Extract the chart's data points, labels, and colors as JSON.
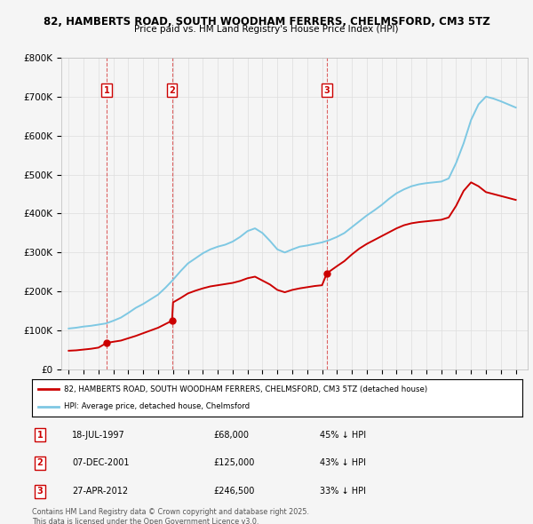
{
  "title1": "82, HAMBERTS ROAD, SOUTH WOODHAM FERRERS, CHELMSFORD, CM3 5TZ",
  "title2": "Price paid vs. HM Land Registry's House Price Index (HPI)",
  "legend_line1": "82, HAMBERTS ROAD, SOUTH WOODHAM FERRERS, CHELMSFORD, CM3 5TZ (detached house)",
  "legend_line2": "HPI: Average price, detached house, Chelmsford",
  "footer": "Contains HM Land Registry data © Crown copyright and database right 2025.\nThis data is licensed under the Open Government Licence v3.0.",
  "purchases": [
    {
      "label": "1",
      "date": "18-JUL-1997",
      "year": 1997.54,
      "price": 68000,
      "text": "45% ↓ HPI"
    },
    {
      "label": "2",
      "date": "07-DEC-2001",
      "year": 2001.93,
      "price": 125000,
      "text": "43% ↓ HPI"
    },
    {
      "label": "3",
      "date": "27-APR-2012",
      "year": 2012.32,
      "price": 246500,
      "text": "33% ↓ HPI"
    }
  ],
  "hpi_color": "#7ec8e3",
  "price_color": "#cc0000",
  "background_color": "#f5f5f5",
  "grid_color": "#dddddd",
  "ylim": [
    0,
    800000
  ],
  "xlim": [
    1994.5,
    2025.8
  ],
  "hpi_years": [
    1995,
    1995.5,
    1996,
    1996.5,
    1997,
    1997.5,
    1998,
    1998.5,
    1999,
    1999.5,
    2000,
    2000.5,
    2001,
    2001.5,
    2002,
    2002.5,
    2003,
    2003.5,
    2004,
    2004.5,
    2005,
    2005.5,
    2006,
    2006.5,
    2007,
    2007.5,
    2008,
    2008.5,
    2009,
    2009.5,
    2010,
    2010.5,
    2011,
    2011.5,
    2012,
    2012.5,
    2013,
    2013.5,
    2014,
    2014.5,
    2015,
    2015.5,
    2016,
    2016.5,
    2017,
    2017.5,
    2018,
    2018.5,
    2019,
    2019.5,
    2020,
    2020.5,
    2021,
    2021.5,
    2022,
    2022.5,
    2023,
    2023.5,
    2024,
    2024.5,
    2025
  ],
  "hpi_values": [
    105000,
    107000,
    110000,
    112000,
    115000,
    118000,
    125000,
    133000,
    145000,
    158000,
    168000,
    180000,
    192000,
    210000,
    230000,
    252000,
    272000,
    285000,
    298000,
    308000,
    315000,
    320000,
    328000,
    340000,
    355000,
    362000,
    350000,
    330000,
    308000,
    300000,
    308000,
    315000,
    318000,
    322000,
    326000,
    332000,
    340000,
    350000,
    365000,
    380000,
    395000,
    408000,
    422000,
    438000,
    452000,
    462000,
    470000,
    475000,
    478000,
    480000,
    482000,
    490000,
    530000,
    580000,
    640000,
    680000,
    700000,
    695000,
    688000,
    680000,
    672000
  ],
  "price_years": [
    1995,
    1995.5,
    1996,
    1996.5,
    1997,
    1997.54,
    1998,
    1998.5,
    1999,
    1999.5,
    2000,
    2000.5,
    2001,
    2001.93,
    2002,
    2002.5,
    2003,
    2003.5,
    2004,
    2004.5,
    2005,
    2005.5,
    2006,
    2006.5,
    2007,
    2007.5,
    2008,
    2008.5,
    2009,
    2009.5,
    2010,
    2010.5,
    2011,
    2011.5,
    2012,
    2012.32,
    2013,
    2013.5,
    2014,
    2014.5,
    2015,
    2015.5,
    2016,
    2016.5,
    2017,
    2017.5,
    2018,
    2018.5,
    2019,
    2019.5,
    2020,
    2020.5,
    2021,
    2021.5,
    2022,
    2022.5,
    2023,
    2023.5,
    2024,
    2024.5,
    2025
  ],
  "price_values": [
    48000,
    49000,
    51000,
    53000,
    56000,
    68000,
    71000,
    74000,
    80000,
    86000,
    93000,
    100000,
    107000,
    125000,
    172000,
    183000,
    195000,
    202000,
    208000,
    213000,
    216000,
    219000,
    222000,
    227000,
    234000,
    238000,
    228000,
    218000,
    204000,
    198000,
    204000,
    208000,
    211000,
    214000,
    216000,
    246500,
    265000,
    278000,
    295000,
    310000,
    322000,
    332000,
    342000,
    352000,
    362000,
    370000,
    375000,
    378000,
    380000,
    382000,
    384000,
    390000,
    420000,
    458000,
    480000,
    470000,
    455000,
    450000,
    445000,
    440000,
    435000
  ]
}
